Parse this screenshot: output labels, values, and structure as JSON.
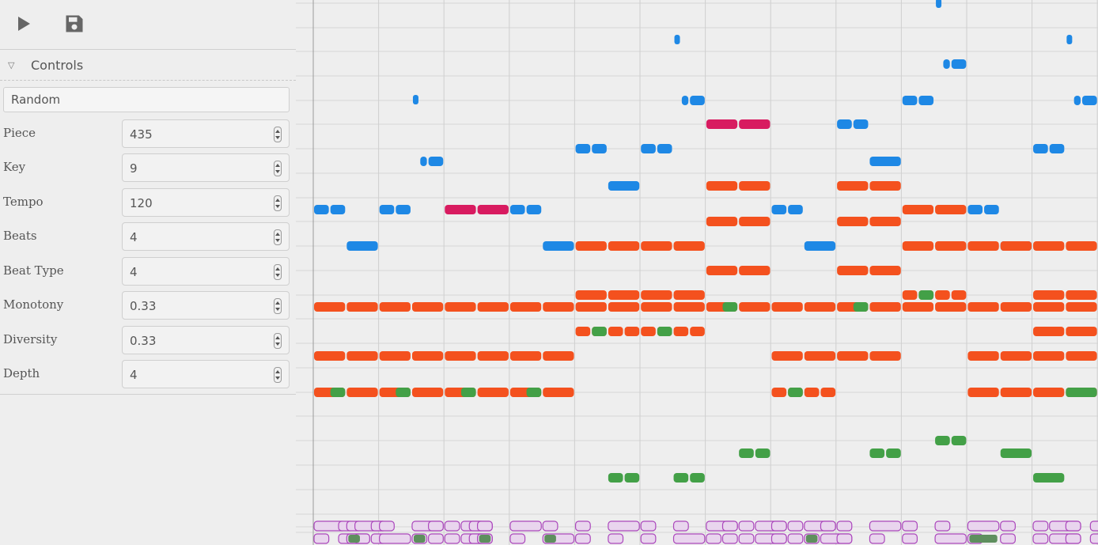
{
  "toolbar": {
    "play_icon": "play-icon",
    "save_icon": "save-icon"
  },
  "controls": {
    "title": "Controls",
    "random_label": "Random",
    "fields": [
      {
        "label": "Piece",
        "value": "435"
      },
      {
        "label": "Key",
        "value": "9"
      },
      {
        "label": "Tempo",
        "value": "120"
      },
      {
        "label": "Beats",
        "value": "4"
      },
      {
        "label": "Beat Type",
        "value": "4"
      },
      {
        "label": "Monotony",
        "value": "0.33"
      },
      {
        "label": "Diversity",
        "value": "0.33"
      },
      {
        "label": "Depth",
        "value": "4"
      }
    ]
  },
  "colors": {
    "blue": "#1e88e5",
    "orange": "#f4511e",
    "crimson": "#d81b60",
    "green": "#43a047",
    "purple": "#ab47bc",
    "grid": "#c8c8c8",
    "background": "#eeeeee"
  }
}
